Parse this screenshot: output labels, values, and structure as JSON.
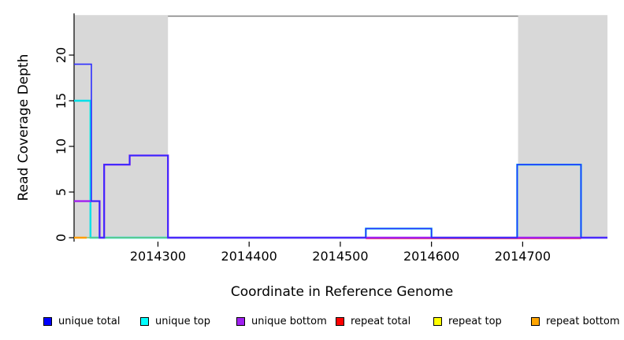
{
  "figure": {
    "xlabel": "Coordinate in Reference Genome",
    "ylabel": "Read Coverage Depth"
  },
  "chart_data": {
    "type": "line",
    "subtype": "step-coverage",
    "title": "",
    "xlabel": "Coordinate in Reference Genome",
    "ylabel": "Read Coverage Depth",
    "xlim": [
      2014208,
      2014793
    ],
    "ylim": [
      0,
      24.3
    ],
    "xticks": [
      2014300,
      2014400,
      2014500,
      2014600,
      2014700
    ],
    "yticks": [
      0,
      5,
      10,
      15,
      20
    ],
    "grid": false,
    "legend_position": "bottom",
    "background": "#ffffff",
    "shaded_region_color": "#d8d8d8",
    "shaded_regions": [
      {
        "name": "left-repeat-region",
        "from": 2014208,
        "to": 2014311
      },
      {
        "name": "right-repeat-region",
        "from": 2014695,
        "to": 2014793
      }
    ],
    "top_rule": {
      "value": 24.3,
      "color": "#7d7d7d"
    },
    "series": [
      {
        "name": "unique top",
        "color": "#00e0e8",
        "width": 2.4,
        "steps": [
          [
            2014208,
            15
          ],
          [
            2014226,
            0
          ],
          [
            2014528,
            1
          ],
          [
            2014600,
            0
          ],
          [
            2014694,
            8
          ],
          [
            2014764,
            0
          ],
          [
            2014793,
            0
          ]
        ]
      },
      {
        "name": "repeat bottom",
        "color": "#ff9d00",
        "width": 2.6,
        "steps": [
          [
            2014208,
            0
          ],
          [
            2014222,
            0
          ]
        ]
      },
      {
        "name": "repeat top",
        "color": "#74c476",
        "width": 1.6,
        "steps": [
          [
            2014222,
            0
          ],
          [
            2014311,
            0
          ]
        ]
      },
      {
        "name": "repeat total",
        "color": "#ff3344",
        "width": 1.8,
        "dy": 1,
        "steps": [
          [
            2014528,
            0
          ],
          [
            2014764,
            0
          ]
        ]
      },
      {
        "name": "unique bottom",
        "color": "#a020f0",
        "width": 2.4,
        "steps": [
          [
            2014208,
            4
          ],
          [
            2014236,
            0
          ],
          [
            2014241,
            8
          ],
          [
            2014269,
            9
          ],
          [
            2014311,
            0
          ],
          [
            2014793,
            0
          ]
        ]
      },
      {
        "name": "unique total",
        "color": "#2d2dff",
        "width": 1.6,
        "steps": [
          [
            2014208,
            19
          ],
          [
            2014227,
            4
          ],
          [
            2014236,
            0
          ],
          [
            2014241,
            8
          ],
          [
            2014269,
            9
          ],
          [
            2014311,
            0
          ],
          [
            2014528,
            1
          ],
          [
            2014600,
            0
          ],
          [
            2014694,
            8
          ],
          [
            2014764,
            0
          ],
          [
            2014793,
            0
          ]
        ]
      }
    ],
    "legend": [
      {
        "label": "unique total",
        "swatch": "#0000ff"
      },
      {
        "label": "unique top",
        "swatch": "#00ffff"
      },
      {
        "label": "unique bottom",
        "swatch": "#a020f0"
      },
      {
        "label": "repeat total",
        "swatch": "#ff0000"
      },
      {
        "label": "repeat top",
        "swatch": "#ffff00"
      },
      {
        "label": "repeat bottom",
        "swatch": "#ffa500"
      }
    ]
  }
}
